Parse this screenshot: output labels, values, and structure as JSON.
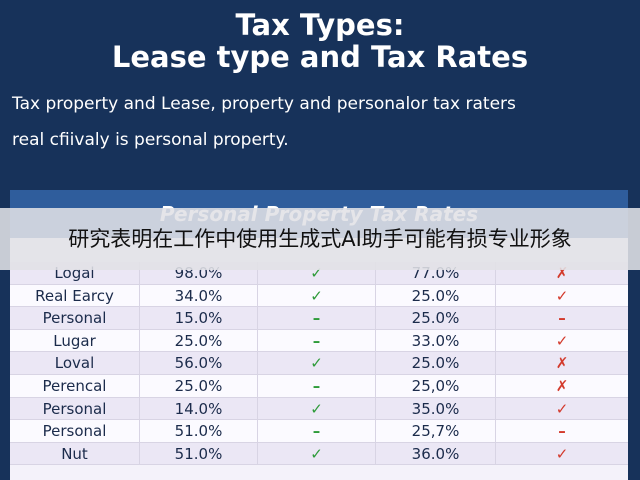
{
  "header": {
    "title_lines": [
      "Tax Types:",
      "Lease type and Tax Rates"
    ]
  },
  "body": {
    "lines": [
      "Tax property and Lease, property and personalor tax raters",
      "real cfiivaly is personal property."
    ]
  },
  "table": {
    "title": "Personal Property Tax Rates",
    "rows": [
      [
        "Logal",
        "98.0%",
        "✓",
        "77.0%",
        "✗"
      ],
      [
        "Real Earcy",
        "34.0%",
        "✓",
        "25.0%",
        "✓"
      ],
      [
        "Personal",
        "15.0%",
        "–",
        "25.0%",
        "–"
      ],
      [
        "Lugar",
        "25.0%",
        "–",
        "33.0%",
        "✓"
      ],
      [
        "Loval",
        "56.0%",
        "✓",
        "25.0%",
        "✗"
      ],
      [
        "Perencal",
        "25.0%",
        "–",
        "25,0%",
        "✗"
      ],
      [
        "Personal",
        "14.0%",
        "✓",
        "35.0%",
        "✓"
      ],
      [
        "Personal",
        "51.0%",
        "–",
        "25,7%",
        "–"
      ],
      [
        "Nut",
        "51.0%",
        "✓",
        "36.0%",
        "✓"
      ]
    ]
  },
  "caption": "研究表明在工作中使用生成式AI助手可能有损专业形象"
}
